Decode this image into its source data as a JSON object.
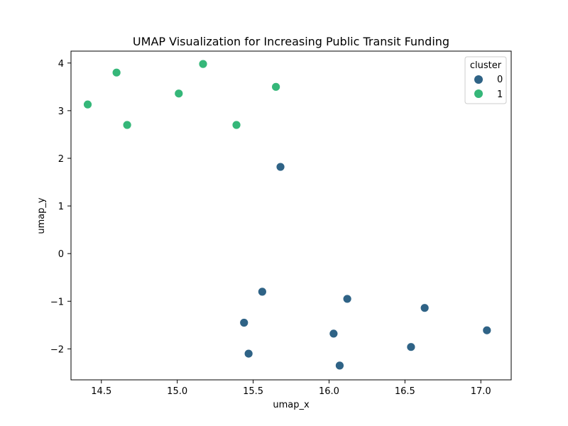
{
  "chart_data": {
    "type": "scatter",
    "title": "UMAP Visualization for Increasing Public Transit Funding",
    "xlabel": "umap_x",
    "ylabel": "umap_y",
    "xlim": [
      14.3,
      17.2
    ],
    "ylim": [
      -2.65,
      4.25
    ],
    "xticks": [
      14.5,
      15.0,
      15.5,
      16.0,
      16.5,
      17.0
    ],
    "xtick_labels": [
      "14.5",
      "15.0",
      "15.5",
      "16.0",
      "16.5",
      "17.0"
    ],
    "yticks": [
      -2,
      -1,
      0,
      1,
      2,
      3,
      4
    ],
    "ytick_labels": [
      "−2",
      "−1",
      "0",
      "1",
      "2",
      "3",
      "4"
    ],
    "grid": false,
    "legend": {
      "title": "cluster",
      "position": "top-right",
      "entries": [
        {
          "label": "0",
          "color": "#2f6386"
        },
        {
          "label": "1",
          "color": "#35b779"
        }
      ]
    },
    "series": [
      {
        "name": "0",
        "color": "#2f6386",
        "points": [
          {
            "x": 15.68,
            "y": 1.82
          },
          {
            "x": 15.56,
            "y": -0.8
          },
          {
            "x": 16.12,
            "y": -0.95
          },
          {
            "x": 16.63,
            "y": -1.14
          },
          {
            "x": 15.44,
            "y": -1.45
          },
          {
            "x": 16.03,
            "y": -1.68
          },
          {
            "x": 17.04,
            "y": -1.61
          },
          {
            "x": 16.54,
            "y": -1.96
          },
          {
            "x": 15.47,
            "y": -2.1
          },
          {
            "x": 16.07,
            "y": -2.35
          }
        ]
      },
      {
        "name": "1",
        "color": "#35b779",
        "points": [
          {
            "x": 14.41,
            "y": 3.13
          },
          {
            "x": 14.6,
            "y": 3.8
          },
          {
            "x": 14.67,
            "y": 2.7
          },
          {
            "x": 15.01,
            "y": 3.36
          },
          {
            "x": 15.17,
            "y": 3.98
          },
          {
            "x": 15.39,
            "y": 2.7
          },
          {
            "x": 15.65,
            "y": 3.5
          }
        ]
      }
    ]
  }
}
